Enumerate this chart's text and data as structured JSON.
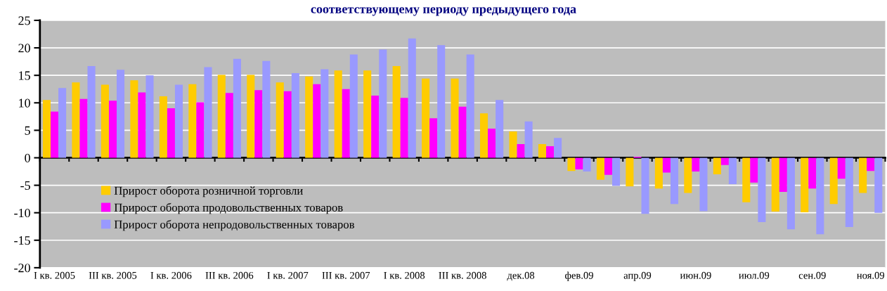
{
  "chart_data": {
    "type": "bar",
    "title": "соответствующему периоду предыдущего года",
    "categories": [
      "I кв. 2005",
      null,
      "III кв. 2005",
      null,
      "I кв. 2006",
      null,
      "III кв. 2006",
      null,
      "I кв. 2007",
      null,
      "III кв. 2007",
      null,
      "I кв. 2008",
      null,
      "III кв. 2008",
      null,
      "дек.08",
      null,
      "фев.09",
      null,
      "апр.09",
      null,
      "июн.09",
      null,
      "июл.09",
      null,
      "сен.09",
      null,
      "ноя.09"
    ],
    "series": [
      {
        "name": "Прирост оборота розничной торговли",
        "color": "#ffcc00",
        "values": [
          10.5,
          13.7,
          13.3,
          14.1,
          11.2,
          13.4,
          15.1,
          15.1,
          13.7,
          14.8,
          15.9,
          15.9,
          16.7,
          14.4,
          14.4,
          8.1,
          4.8,
          2.5,
          -2.4,
          -4.0,
          -5.2,
          -5.6,
          -6.4,
          -3.0,
          -8.1,
          -9.8,
          -9.9,
          -8.4,
          -6.4
        ]
      },
      {
        "name": "Прирост оборота продовольственных товаров",
        "color": "#ff00ff",
        "values": [
          8.4,
          10.7,
          10.4,
          11.9,
          9.0,
          10.1,
          11.8,
          12.3,
          12.1,
          13.4,
          12.5,
          11.3,
          10.9,
          7.2,
          9.3,
          5.3,
          2.5,
          2.1,
          -2.1,
          -3.1,
          0.2,
          -2.7,
          -2.5,
          -1.3,
          -4.5,
          -6.2,
          -5.6,
          -3.8,
          -2.4
        ]
      },
      {
        "name": "Прирост оборота непродовольственных товаров",
        "color": "#9999ff",
        "values": [
          12.7,
          16.7,
          16.0,
          15.0,
          13.3,
          16.5,
          18.0,
          17.6,
          15.4,
          16.1,
          18.8,
          19.7,
          21.7,
          20.5,
          18.8,
          10.5,
          6.6,
          3.6,
          -2.5,
          -5.1,
          -10.2,
          -8.4,
          -9.7,
          -4.8,
          -11.7,
          -13.0,
          -13.9,
          -12.6,
          -10.0
        ]
      }
    ],
    "ylim": [
      -20,
      25
    ],
    "yticks": [
      -20,
      -15,
      -10,
      -5,
      0,
      5,
      10,
      15,
      20,
      25
    ],
    "grid": "y",
    "legend": "center left"
  }
}
